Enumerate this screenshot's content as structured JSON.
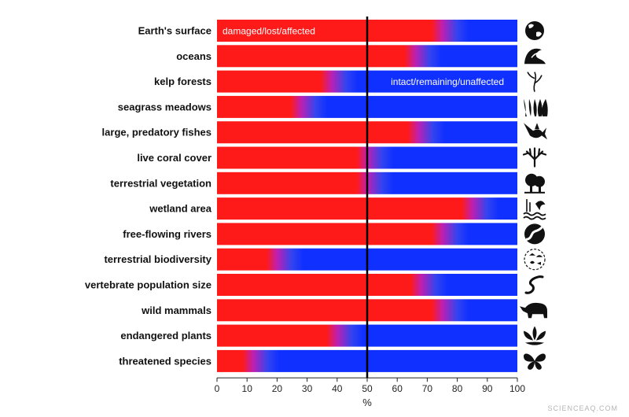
{
  "chart_data": {
    "type": "bar",
    "orientation": "horizontal",
    "stacked": true,
    "categories": [
      "Earth's surface",
      "oceans",
      "kelp forests",
      "seagrass meadows",
      "large, predatory fishes",
      "live coral cover",
      "terrestrial vegetation",
      "wetland area",
      "free-flowing rivers",
      "terrestrial biodiversity",
      "vertebrate population size",
      "wild mammals",
      "endangered plants",
      "threatened species"
    ],
    "values": [
      75,
      66,
      38,
      28,
      67,
      50,
      50,
      85,
      75,
      20,
      68,
      75,
      40,
      12
    ],
    "colors": {
      "damaged": "#ff1a1a",
      "intact": "#1030ff"
    },
    "icons": [
      "globe-icon",
      "wave-icon",
      "kelp-icon",
      "seagrass-icon",
      "swordfish-icon",
      "coral-icon",
      "tree-icon",
      "wetland-icon",
      "river-icon",
      "biodiversity-icon",
      "snake-icon",
      "rhino-icon",
      "lotus-icon",
      "butterfly-icon"
    ],
    "annotations": {
      "damaged": "damaged/lost/affected",
      "intact": "intact/remaining/unaffected"
    },
    "xlabel": "%",
    "xlim": [
      0,
      100
    ],
    "xticks": [
      0,
      10,
      20,
      30,
      40,
      50,
      60,
      70,
      80,
      90,
      100
    ],
    "reference_line": 50
  },
  "watermark": "SCIENCEAQ.COM"
}
